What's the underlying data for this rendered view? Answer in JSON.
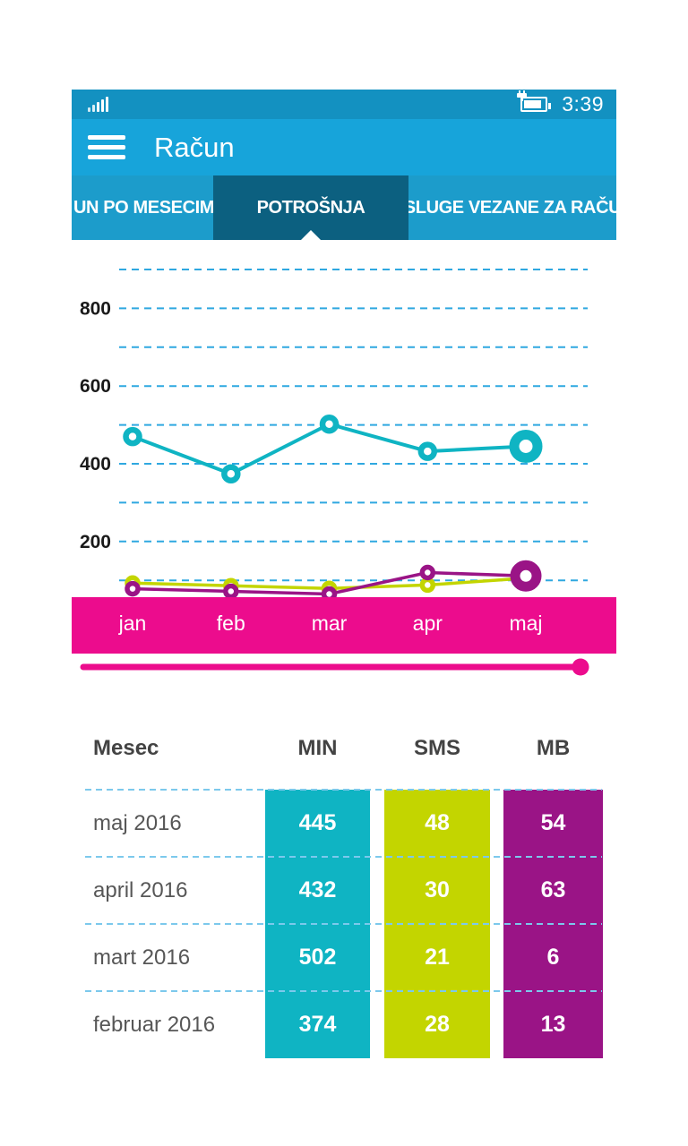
{
  "status_bar": {
    "time": "3:39",
    "signal_icon": "signal-strength-bars",
    "battery_icon": "battery-charging"
  },
  "header": {
    "title": "Račun",
    "menu_icon": "hamburger-menu"
  },
  "tabs": [
    {
      "label": "UN PO MESECIMA",
      "active": false
    },
    {
      "label": "POTROŠNJA",
      "active": true
    },
    {
      "label": "USLUGE VEZANE ZA RAČUN",
      "active": false
    }
  ],
  "chart_data": {
    "type": "line",
    "categories": [
      "jan",
      "feb",
      "mar",
      "apr",
      "maj"
    ],
    "series": [
      {
        "name": "MIN",
        "color": "#0FB4C3",
        "values": [
          470,
          374,
          502,
          432,
          445
        ]
      },
      {
        "name": "SMS",
        "color": "#C3D500",
        "values": [
          35,
          28,
          21,
          30,
          48
        ]
      },
      {
        "name": "MB",
        "color": "#9A1486",
        "values": [
          20,
          13,
          6,
          63,
          54
        ]
      }
    ],
    "y_ticks": [
      800,
      600,
      400,
      200
    ],
    "ylim": [
      0,
      950
    ],
    "gridlines": "dashed horizontal every 100",
    "legend": "none",
    "emphasis": "last point (maj) drawn with enlarged ring marker",
    "x_axis_style": "labels on solid pink band"
  },
  "slider": {
    "role": "timeline-scrubber",
    "position": "end"
  },
  "table": {
    "headers": {
      "month": "Mesec",
      "min": "MIN",
      "sms": "SMS",
      "mb": "MB"
    },
    "rows": [
      {
        "month": "maj 2016",
        "min": "445",
        "sms": "48",
        "mb": "54"
      },
      {
        "month": "april 2016",
        "min": "432",
        "sms": "30",
        "mb": "63"
      },
      {
        "month": "mart 2016",
        "min": "502",
        "sms": "21",
        "mb": "6"
      },
      {
        "month": "februar 2016",
        "min": "374",
        "sms": "28",
        "mb": "13"
      }
    ]
  },
  "colors": {
    "statusbar": "#1391C1",
    "header": "#17A4DA",
    "tab-bg": "#1C9CCB",
    "tab-active": "#0C6080",
    "teal": "#0FB4C3",
    "lime": "#C3D500",
    "purple": "#9A1486",
    "pink": "#EC0C8D",
    "gridline": "#2FA8E0",
    "separator": "#7CC9EC"
  }
}
